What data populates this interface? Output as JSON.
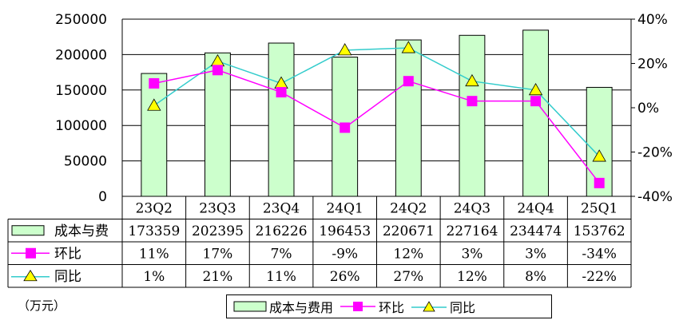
{
  "chart_data": {
    "type": "bar",
    "categories": [
      "23Q2",
      "23Q3",
      "23Q4",
      "24Q1",
      "24Q2",
      "24Q3",
      "24Q4",
      "25Q1"
    ],
    "series": [
      {
        "name": "成本与费用",
        "type": "bar",
        "axis": "left",
        "color": "#ccffcc",
        "values": [
          173359,
          202395,
          216226,
          196453,
          220671,
          227164,
          234474,
          153762
        ]
      },
      {
        "name": "环比",
        "type": "line",
        "axis": "right",
        "color": "#ff00ff",
        "marker": "square",
        "values": [
          11,
          17,
          7,
          -9,
          12,
          3,
          3,
          -34
        ]
      },
      {
        "name": "同比",
        "type": "line",
        "axis": "right",
        "color": "#33cccc",
        "marker": "triangle",
        "marker_fill": "#ffff00",
        "values": [
          1,
          21,
          11,
          26,
          27,
          12,
          8,
          -22
        ]
      }
    ],
    "table_rows": [
      {
        "label": "成本与费",
        "cells": [
          "173359",
          "202395",
          "216226",
          "196453",
          "220671",
          "227164",
          "234474",
          "153762"
        ]
      },
      {
        "label": "环比",
        "cells": [
          "11%",
          "17%",
          "7%",
          "-9%",
          "12%",
          "3%",
          "3%",
          "-34%"
        ]
      },
      {
        "label": "同比",
        "cells": [
          "1%",
          "21%",
          "11%",
          "26%",
          "27%",
          "12%",
          "8%",
          "-22%"
        ]
      }
    ],
    "y_left": {
      "min": 0,
      "max": 250000,
      "ticks": [
        "0",
        "50000",
        "100000",
        "150000",
        "200000",
        "250000"
      ]
    },
    "y_right": {
      "min": -40,
      "max": 40,
      "ticks": [
        "-40%",
        "-20%",
        "0%",
        "20%",
        "40%"
      ]
    },
    "legend_position": "bottom",
    "legend_labels": [
      "成本与费用",
      "环比",
      "同比"
    ],
    "grid": true,
    "unit_label": "（万元）"
  }
}
